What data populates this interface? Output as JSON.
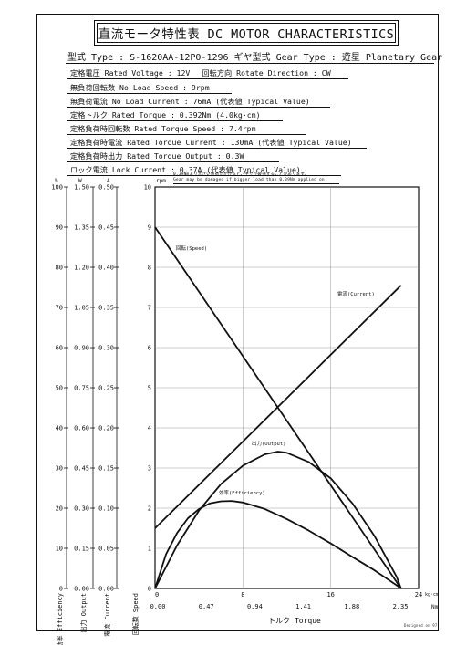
{
  "title": "直流モータ特性表 DC MOTOR CHARACTERISTICS",
  "type_line": "型式 Type : S-1620AA-12P0-1296 ギヤ型式 Gear Type : 遊星 Planetary Gear",
  "specs": [
    "定格電圧 Rated Voltage : 12V　 回転方向 Rotate Direction : CW",
    "無負荷回転数 No Load Speed : 9rpm",
    "無負荷電流 No Load Current : 76mA (代表値 Typical Value)",
    "定格トルク Rated Torque : 0.392Nm (4.0kg·cm)",
    "定格負荷時回転数 Rated Torque Speed : 7.4rpm",
    "定格負荷時電流 Rated Torque Current : 130mA (代表値 Typical Value)",
    "定格負荷時出力 Rated Torque Output : 0.3W",
    "ロック電流 Lock Current : 0.37A (代表値 Typical Value)"
  ],
  "note_ja": "0.39Nmより大きい負荷がかかると、ギヤが破損することがあります。",
  "note_en": "Gear may be damaged if bigger load than 0.39Nm applied on.",
  "footer": "Designed on 97",
  "chart_data": {
    "type": "line",
    "xlabel": "トルク Torque",
    "x_unit_kg": "kg·cm",
    "x_unit_nm": "Nm",
    "xlim": [
      0,
      24
    ],
    "xticks_kgcm": [
      "0",
      "8",
      "16",
      "24"
    ],
    "xticks_nm": [
      "0.00",
      "0.47",
      "0.94",
      "1.41",
      "1.88",
      "2.35"
    ],
    "axes": [
      {
        "unit": "%",
        "label": "効率 Efficiency",
        "range": [
          0,
          100
        ],
        "ticks": [
          "0",
          "10",
          "20",
          "30",
          "40",
          "50",
          "60",
          "70",
          "80",
          "90",
          "100"
        ]
      },
      {
        "unit": "W",
        "label": "出力 Output",
        "range": [
          0,
          1.5
        ],
        "ticks": [
          "0.00",
          "0.15",
          "0.30",
          "0.45",
          "0.60",
          "0.75",
          "0.90",
          "1.05",
          "1.20",
          "1.35",
          "1.50"
        ]
      },
      {
        "unit": "A",
        "label": "電流 Current",
        "range": [
          0,
          0.5
        ],
        "ticks": [
          "0.00",
          "0.05",
          "0.10",
          "0.15",
          "0.20",
          "0.25",
          "0.30",
          "0.35",
          "0.40",
          "0.45",
          "0.50"
        ]
      },
      {
        "unit": "rpm",
        "label": "回転数 Speed",
        "range": [
          0,
          10
        ],
        "ticks": [
          "0",
          "1",
          "2",
          "3",
          "4",
          "5",
          "6",
          "7",
          "8",
          "9",
          "10"
        ]
      }
    ],
    "grid": true,
    "series": [
      {
        "name": "回転(Speed)",
        "axis": "rpm",
        "x": [
          0,
          22.4
        ],
        "y": [
          9,
          0
        ]
      },
      {
        "name": "電流(Current)",
        "axis": "rpm",
        "x": [
          0,
          22.4
        ],
        "y": [
          1.5,
          7.55
        ]
      },
      {
        "name": "出力(Output)",
        "axis": "rpm",
        "x": [
          0,
          2,
          4,
          6,
          8,
          10,
          11.2,
          12,
          14,
          16,
          18,
          20,
          22,
          22.4
        ],
        "y": [
          0,
          1.07,
          1.94,
          2.6,
          3.06,
          3.34,
          3.41,
          3.38,
          3.15,
          2.74,
          2.11,
          1.3,
          0.29,
          0
        ]
      },
      {
        "name": "効率(Efficiency)",
        "axis": "rpm",
        "x": [
          0,
          1,
          2,
          3,
          4,
          5,
          6,
          7,
          8,
          10,
          12,
          14,
          16,
          18,
          20,
          22,
          22.4
        ],
        "y": [
          0,
          0.85,
          1.38,
          1.75,
          1.98,
          2.12,
          2.17,
          2.18,
          2.14,
          1.98,
          1.73,
          1.44,
          1.12,
          0.78,
          0.45,
          0.08,
          0
        ]
      }
    ]
  }
}
